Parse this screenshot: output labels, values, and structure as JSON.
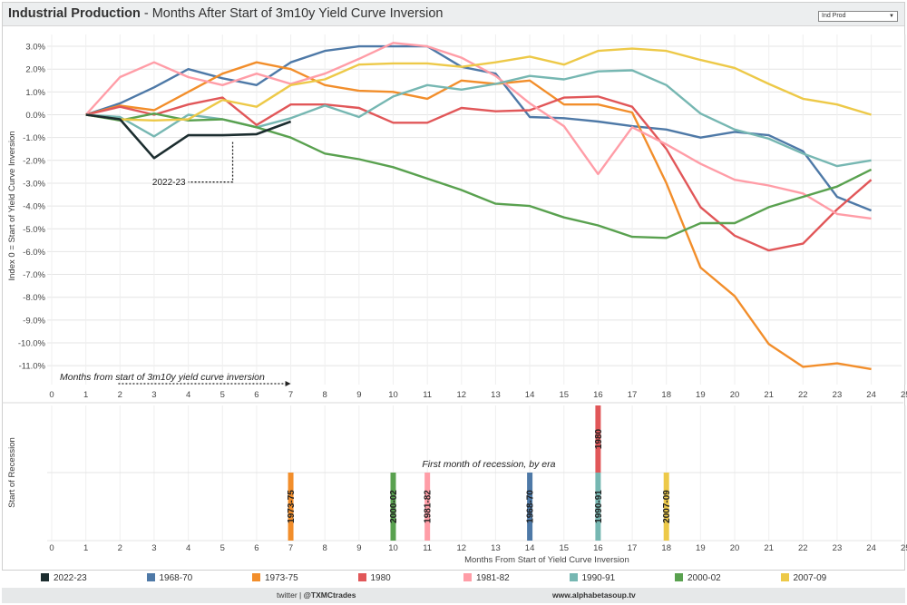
{
  "header": {
    "title_bold": "Industrial Production",
    "title_rest": " - Months After Start of 3m10y Yield Curve Inversion",
    "dropdown_value": "Ind Prod"
  },
  "footer": {
    "twitter_prefix": "twitter | ",
    "twitter_handle": "@TXMCtrades",
    "website": "www.alphabetasoup.tv"
  },
  "chart_data": [
    {
      "type": "line",
      "title": "Industrial Production - Months After Start of 3m10y Yield Curve Inversion",
      "ylabel": "Index 0 = Start of Yield Curve Inversion",
      "xlim": [
        0,
        25
      ],
      "ylim": [
        -11.8,
        3.4
      ],
      "x_ticks": [
        0,
        1,
        2,
        3,
        4,
        5,
        6,
        7,
        8,
        9,
        10,
        11,
        12,
        13,
        14,
        15,
        16,
        17,
        18,
        19,
        20,
        21,
        22,
        23,
        24,
        25
      ],
      "y_ticks": [
        3,
        2,
        1,
        0,
        -1,
        -2,
        -3,
        -4,
        -5,
        -6,
        -7,
        -8,
        -9,
        -10,
        -11
      ],
      "y_tick_labels": [
        "3.0%",
        "2.0%",
        "1.0%",
        "0.0%",
        "-1.0%",
        "-2.0%",
        "-3.0%",
        "-4.0%",
        "-5.0%",
        "-6.0%",
        "-7.0%",
        "-8.0%",
        "-9.0%",
        "-10.0%",
        "-11.0%"
      ],
      "grid": true,
      "annotations": {
        "current_label": "2022-23",
        "x_axis_note": "Months from start of 3m10y yield curve inversion"
      },
      "series": [
        {
          "name": "1968-70",
          "color": "#4e79a7",
          "values": [
            [
              1,
              0
            ],
            [
              2,
              0.5
            ],
            [
              3,
              1.2
            ],
            [
              4,
              2.0
            ],
            [
              5,
              1.6
            ],
            [
              6,
              1.3
            ],
            [
              7,
              2.3
            ],
            [
              8,
              2.8
            ],
            [
              9,
              3.0
            ],
            [
              10,
              3.0
            ],
            [
              11,
              3.0
            ],
            [
              12,
              2.1
            ],
            [
              13,
              1.8
            ],
            [
              14,
              -0.1
            ],
            [
              15,
              -0.15
            ],
            [
              16,
              -0.3
            ],
            [
              17,
              -0.5
            ],
            [
              18,
              -0.65
            ],
            [
              19,
              -1.0
            ],
            [
              20,
              -0.75
            ],
            [
              21,
              -0.9
            ],
            [
              22,
              -1.6
            ],
            [
              23,
              -3.6
            ],
            [
              24,
              -4.2
            ]
          ]
        },
        {
          "name": "1973-75",
          "color": "#f28e2b",
          "values": [
            [
              1,
              0
            ],
            [
              2,
              0.4
            ],
            [
              3,
              0.2
            ],
            [
              4,
              1.0
            ],
            [
              5,
              1.8
            ],
            [
              6,
              2.3
            ],
            [
              7,
              2.0
            ],
            [
              8,
              1.3
            ],
            [
              9,
              1.05
            ],
            [
              10,
              1.0
            ],
            [
              11,
              0.7
            ],
            [
              12,
              1.5
            ],
            [
              13,
              1.35
            ],
            [
              14,
              1.5
            ],
            [
              15,
              0.45
            ],
            [
              16,
              0.45
            ],
            [
              17,
              0.1
            ],
            [
              18,
              -3.0
            ],
            [
              19,
              -6.7
            ],
            [
              20,
              -7.95
            ],
            [
              21,
              -10.05
            ],
            [
              22,
              -11.05
            ],
            [
              23,
              -10.9
            ],
            [
              24,
              -11.15
            ]
          ]
        },
        {
          "name": "1980",
          "color": "#e15759",
          "values": [
            [
              1,
              0
            ],
            [
              2,
              0.35
            ],
            [
              3,
              0.0
            ],
            [
              4,
              0.45
            ],
            [
              5,
              0.75
            ],
            [
              6,
              -0.45
            ],
            [
              7,
              0.45
            ],
            [
              8,
              0.45
            ],
            [
              9,
              0.3
            ],
            [
              10,
              -0.35
            ],
            [
              11,
              -0.35
            ],
            [
              12,
              0.3
            ],
            [
              13,
              0.15
            ],
            [
              14,
              0.2
            ],
            [
              15,
              0.75
            ],
            [
              16,
              0.8
            ],
            [
              17,
              0.35
            ],
            [
              18,
              -1.5
            ],
            [
              19,
              -4.05
            ],
            [
              20,
              -5.3
            ],
            [
              21,
              -5.95
            ],
            [
              22,
              -5.65
            ],
            [
              23,
              -4.15
            ],
            [
              24,
              -2.85
            ]
          ]
        },
        {
          "name": "1981-82",
          "color": "#ff9da7",
          "values": [
            [
              1,
              0
            ],
            [
              2,
              1.65
            ],
            [
              3,
              2.3
            ],
            [
              4,
              1.65
            ],
            [
              5,
              1.3
            ],
            [
              6,
              1.8
            ],
            [
              7,
              1.35
            ],
            [
              8,
              1.8
            ],
            [
              9,
              2.45
            ],
            [
              10,
              3.15
            ],
            [
              11,
              3.0
            ],
            [
              12,
              2.5
            ],
            [
              13,
              1.7
            ],
            [
              14,
              0.5
            ],
            [
              15,
              -0.5
            ],
            [
              16,
              -2.6
            ],
            [
              17,
              -0.55
            ],
            [
              18,
              -1.3
            ],
            [
              19,
              -2.15
            ],
            [
              20,
              -2.85
            ],
            [
              21,
              -3.1
            ],
            [
              22,
              -3.45
            ],
            [
              23,
              -4.35
            ],
            [
              24,
              -4.55
            ]
          ]
        },
        {
          "name": "1990-91",
          "color": "#76b7b2",
          "values": [
            [
              1,
              0
            ],
            [
              2,
              -0.1
            ],
            [
              3,
              -0.95
            ],
            [
              4,
              0.0
            ],
            [
              5,
              -0.2
            ],
            [
              6,
              -0.55
            ],
            [
              7,
              -0.15
            ],
            [
              8,
              0.4
            ],
            [
              9,
              -0.1
            ],
            [
              10,
              0.8
            ],
            [
              11,
              1.3
            ],
            [
              12,
              1.1
            ],
            [
              13,
              1.35
            ],
            [
              14,
              1.7
            ],
            [
              15,
              1.55
            ],
            [
              16,
              1.9
            ],
            [
              17,
              1.95
            ],
            [
              18,
              1.3
            ],
            [
              19,
              0.05
            ],
            [
              20,
              -0.65
            ],
            [
              21,
              -1.05
            ],
            [
              22,
              -1.7
            ],
            [
              23,
              -2.25
            ],
            [
              24,
              -2.0
            ]
          ]
        },
        {
          "name": "2000-02",
          "color": "#59a14f",
          "values": [
            [
              1,
              0
            ],
            [
              2,
              -0.25
            ],
            [
              3,
              0.05
            ],
            [
              4,
              -0.25
            ],
            [
              5,
              -0.2
            ],
            [
              6,
              -0.55
            ],
            [
              7,
              -1.0
            ],
            [
              8,
              -1.7
            ],
            [
              9,
              -1.95
            ],
            [
              10,
              -2.3
            ],
            [
              11,
              -2.8
            ],
            [
              12,
              -3.3
            ],
            [
              13,
              -3.9
            ],
            [
              14,
              -4.0
            ],
            [
              15,
              -4.5
            ],
            [
              16,
              -4.85
            ],
            [
              17,
              -5.35
            ],
            [
              18,
              -5.4
            ],
            [
              19,
              -4.75
            ],
            [
              20,
              -4.75
            ],
            [
              21,
              -4.05
            ],
            [
              22,
              -3.6
            ],
            [
              23,
              -3.15
            ],
            [
              24,
              -2.4
            ]
          ]
        },
        {
          "name": "2007-09",
          "color": "#edc948",
          "values": [
            [
              1,
              0
            ],
            [
              2,
              -0.2
            ],
            [
              3,
              -0.25
            ],
            [
              4,
              -0.2
            ],
            [
              5,
              0.65
            ],
            [
              6,
              0.35
            ],
            [
              7,
              1.3
            ],
            [
              8,
              1.55
            ],
            [
              9,
              2.2
            ],
            [
              10,
              2.25
            ],
            [
              11,
              2.25
            ],
            [
              12,
              2.1
            ],
            [
              13,
              2.3
            ],
            [
              14,
              2.55
            ],
            [
              15,
              2.2
            ],
            [
              16,
              2.8
            ],
            [
              17,
              2.9
            ],
            [
              18,
              2.8
            ],
            [
              19,
              2.4
            ],
            [
              20,
              2.05
            ],
            [
              21,
              1.35
            ],
            [
              22,
              0.7
            ],
            [
              23,
              0.45
            ],
            [
              24,
              0.0
            ]
          ]
        },
        {
          "name": "2022-23",
          "color": "#1c2d2f",
          "values": [
            [
              1,
              0
            ],
            [
              2,
              -0.2
            ],
            [
              3,
              -1.9
            ],
            [
              4,
              -0.9
            ],
            [
              5,
              -0.9
            ],
            [
              6,
              -0.85
            ],
            [
              7,
              -0.3
            ]
          ]
        }
      ]
    },
    {
      "type": "bar",
      "title": "First month of recession, by era",
      "ylabel": "Start of Recession",
      "xlabel": "Months From Start of Yield Curve Inversion",
      "xlim": [
        0,
        25
      ],
      "x_ticks": [
        0,
        1,
        2,
        3,
        4,
        5,
        6,
        7,
        8,
        9,
        10,
        11,
        12,
        13,
        14,
        15,
        16,
        17,
        18,
        19,
        20,
        21,
        22,
        23,
        24,
        25
      ],
      "levels": 2,
      "bars": [
        {
          "label": "1973-75",
          "month": 7,
          "stack_level": 1,
          "color": "#f28e2b"
        },
        {
          "label": "2000-02",
          "month": 10,
          "stack_level": 1,
          "color": "#59a14f"
        },
        {
          "label": "1981-82",
          "month": 11,
          "stack_level": 1,
          "color": "#ff9da7"
        },
        {
          "label": "1968-70",
          "month": 14,
          "stack_level": 1,
          "color": "#4e79a7"
        },
        {
          "label": "1990-91",
          "month": 16,
          "stack_level": 1,
          "color": "#76b7b2"
        },
        {
          "label": "1980",
          "month": 16,
          "stack_level": 2,
          "color": "#e15759"
        },
        {
          "label": "2007-09",
          "month": 18,
          "stack_level": 1,
          "color": "#edc948"
        }
      ]
    }
  ],
  "legend": [
    {
      "label": "2022-23",
      "color": "#1c2d2f"
    },
    {
      "label": "1968-70",
      "color": "#4e79a7"
    },
    {
      "label": "1973-75",
      "color": "#f28e2b"
    },
    {
      "label": "1980",
      "color": "#e15759"
    },
    {
      "label": "1981-82",
      "color": "#ff9da7"
    },
    {
      "label": "1990-91",
      "color": "#76b7b2"
    },
    {
      "label": "2000-02",
      "color": "#59a14f"
    },
    {
      "label": "2007-09",
      "color": "#edc948"
    }
  ]
}
